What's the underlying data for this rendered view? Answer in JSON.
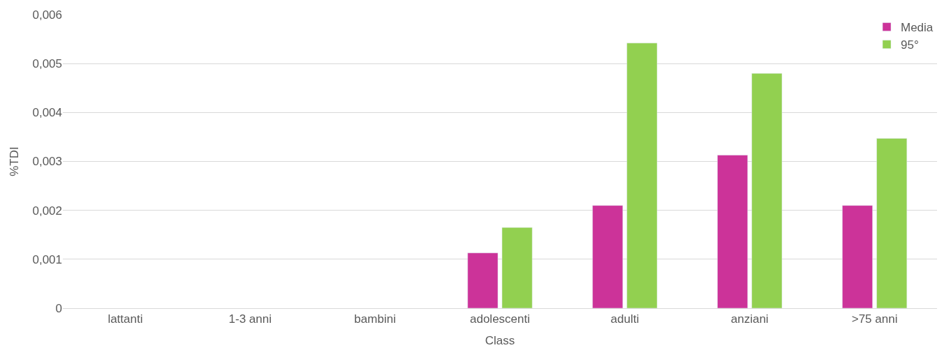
{
  "chart_data": {
    "type": "bar",
    "xlabel": "Class",
    "ylabel": "%TDI",
    "categories": [
      "lattanti",
      "1-3 anni",
      "bambini",
      "adolescenti",
      "adulti",
      "anziani",
      ">75 anni"
    ],
    "series": [
      {
        "name": "Media",
        "color": "#cc3399",
        "values": [
          null,
          null,
          null,
          0.00113,
          0.0021,
          0.00313,
          0.0021
        ]
      },
      {
        "name": "95°",
        "color": "#92d050",
        "values": [
          null,
          null,
          null,
          0.00165,
          0.00542,
          0.0048,
          0.00347
        ]
      }
    ],
    "ylim": [
      0,
      0.006
    ],
    "yticks": [
      0,
      {
        "value": 0.001,
        "label": "0,001"
      },
      {
        "value": 0.002,
        "label": "0,002"
      },
      {
        "value": 0.003,
        "label": "0,003"
      },
      {
        "value": 0.004,
        "label": "0,004"
      },
      {
        "value": 0.005,
        "label": "0,005"
      },
      {
        "value": 0.006,
        "label": "0,006"
      }
    ],
    "grid": "y",
    "legend": "top right"
  }
}
